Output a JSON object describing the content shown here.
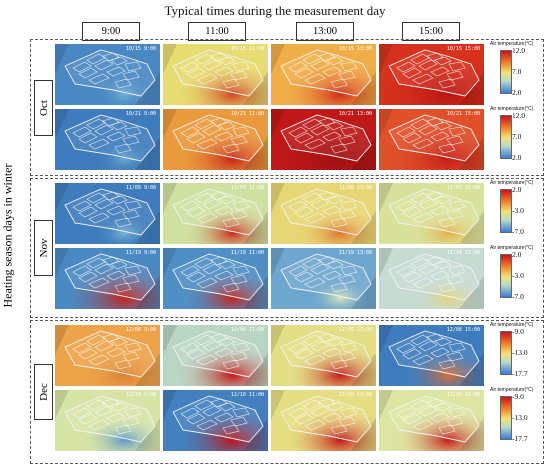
{
  "title": "Typical times during the measurement day",
  "ylabel": "Heating season days in winter",
  "times": [
    "9:00",
    "11:00",
    "13:00",
    "15:00"
  ],
  "legend_title": "Air temperature(°C)",
  "groups": [
    {
      "month": "Oct",
      "rows": [
        {
          "scale": [
            "12.0",
            "7.0",
            "2.0"
          ],
          "maps": [
            {
              "stamp": "10/15 9:00",
              "base": "#4a88c4",
              "hot": "#6fb1d8",
              "heat": 0.05
            },
            {
              "stamp": "10/15 11:00",
              "base": "#e6dc72",
              "hot": "#d24521",
              "heat": 0.55
            },
            {
              "stamp": "10/15 13:00",
              "base": "#f0ae48",
              "hot": "#cf2a18",
              "heat": 0.6
            },
            {
              "stamp": "10/15 15:00",
              "base": "#d7301d",
              "hot": "#b81412",
              "heat": 0.8
            }
          ]
        },
        {
          "scale": [
            "12.0",
            "7.0",
            "2.0"
          ],
          "maps": [
            {
              "stamp": "10/21 9:00",
              "base": "#3f7cbd",
              "hot": "#6aa8d2",
              "heat": 0.05
            },
            {
              "stamp": "10/21 11:00",
              "base": "#ea9a3c",
              "hot": "#c9251a",
              "heat": 0.55
            },
            {
              "stamp": "10/21 13:00",
              "base": "#c01818",
              "hot": "#9e0f10",
              "heat": 0.9
            },
            {
              "stamp": "10/21 15:00",
              "base": "#e0502a",
              "hot": "#c41c16",
              "heat": 0.7
            }
          ]
        }
      ]
    },
    {
      "month": "Nov",
      "rows": [
        {
          "scale": [
            "2.0",
            "-3.0",
            "-7.0"
          ],
          "maps": [
            {
              "stamp": "11/09 9:00",
              "base": "#3f7cbd",
              "hot": "#7ab6d6",
              "heat": 0.05
            },
            {
              "stamp": "11/09 11:00",
              "base": "#cfe1a0",
              "hot": "#c92a1a",
              "heat": 0.4
            },
            {
              "stamp": "11/09 13:00",
              "base": "#e7d774",
              "hot": "#e0752f",
              "heat": 0.35
            },
            {
              "stamp": "11/09 15:00",
              "base": "#d9e29a",
              "hot": "#e6b04a",
              "heat": 0.25
            }
          ]
        },
        {
          "scale": [
            "2.0",
            "-3.0",
            "-7.0"
          ],
          "maps": [
            {
              "stamp": "11/19 9:00",
              "base": "#4a8ac4",
              "hot": "#c72218",
              "heat": 0.65
            },
            {
              "stamp": "11/19 11:00",
              "base": "#4f8fc6",
              "hot": "#c72218",
              "heat": 0.45
            },
            {
              "stamp": "11/19 13:00",
              "base": "#6ea6cf",
              "hot": "#d9e6b4",
              "heat": 0.1
            },
            {
              "stamp": "11/19 15:00",
              "base": "#c6dcd2",
              "hot": "#e3d27a",
              "heat": 0.2
            }
          ]
        }
      ]
    },
    {
      "month": "Dec",
      "rows": [
        {
          "scale": [
            "-9.0",
            "-13.0",
            "-17.7"
          ],
          "maps": [
            {
              "stamp": "12/08 9:00",
              "base": "#eda349",
              "hot": "#d98136",
              "heat": 0.3
            },
            {
              "stamp": "12/08 11:00",
              "base": "#b9d6c4",
              "hot": "#c31616",
              "heat": 0.55
            },
            {
              "stamp": "12/08 13:00",
              "base": "#e3df86",
              "hot": "#c41818",
              "heat": 0.5
            },
            {
              "stamp": "12/08 15:00",
              "base": "#3f7cbd",
              "hot": "#dc6a2e",
              "heat": 0.35
            }
          ]
        },
        {
          "scale": [
            "-9.0",
            "-13.0",
            "-17.7"
          ],
          "maps": [
            {
              "stamp": "12/10 9:00",
              "base": "#d7e4a6",
              "hot": "#5c98ca",
              "heat": 0.3
            },
            {
              "stamp": "12/10 11:00",
              "base": "#4280bf",
              "hot": "#c31616",
              "heat": 0.55
            },
            {
              "stamp": "12/10 13:00",
              "base": "#e6de82",
              "hot": "#c21515",
              "heat": 0.55
            },
            {
              "stamp": "12/10 15:00",
              "base": "#dde5a2",
              "hot": "#c41818",
              "heat": 0.5
            }
          ]
        }
      ]
    }
  ]
}
